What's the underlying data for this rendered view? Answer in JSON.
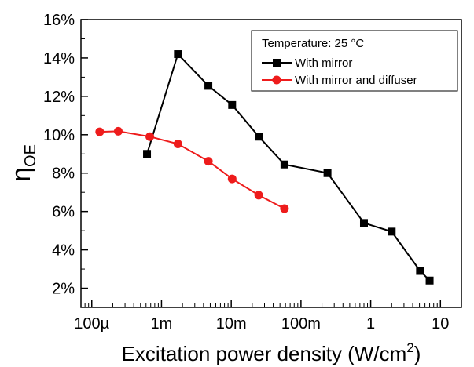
{
  "chart_data": {
    "type": "scatter",
    "x_scale": "log",
    "xlabel_main": "Excitation power density (W/cm",
    "xlabel_sup": "2",
    "xlabel_close": ")",
    "ylabel_main": "η",
    "ylabel_sub": "OE",
    "xlim": [
      7e-05,
      20
    ],
    "ylim": [
      0.01,
      0.16
    ],
    "x_ticks": [
      {
        "value": 0.0001,
        "label": "100µ"
      },
      {
        "value": 0.001,
        "label": "1m"
      },
      {
        "value": 0.01,
        "label": "10m"
      },
      {
        "value": 0.1,
        "label": "100m"
      },
      {
        "value": 1,
        "label": "1"
      },
      {
        "value": 10,
        "label": "10"
      }
    ],
    "y_ticks": [
      {
        "value": 0.02,
        "label": "2%"
      },
      {
        "value": 0.04,
        "label": "4%"
      },
      {
        "value": 0.06,
        "label": "6%"
      },
      {
        "value": 0.08,
        "label": "8%"
      },
      {
        "value": 0.1,
        "label": "10%"
      },
      {
        "value": 0.12,
        "label": "12%"
      },
      {
        "value": 0.14,
        "label": "14%"
      },
      {
        "value": 0.16,
        "label": "16%"
      }
    ],
    "legend_title": "Temperature: 25 °C",
    "legend_position": "top-right",
    "series": [
      {
        "name": "With mirror",
        "color": "#000000",
        "marker": "square",
        "x": [
          0.00062,
          0.00172,
          0.0047,
          0.0103,
          0.0248,
          0.058,
          0.24,
          0.8,
          2.0,
          5.1,
          7.0
        ],
        "y": [
          0.09,
          0.142,
          0.1255,
          0.1155,
          0.099,
          0.0845,
          0.08,
          0.054,
          0.0495,
          0.029,
          0.024
        ]
      },
      {
        "name": "With mirror and diffuser",
        "color": "#ee1c1c",
        "marker": "circle",
        "x": [
          0.00013,
          0.00024,
          0.00068,
          0.00172,
          0.0047,
          0.0103,
          0.0248,
          0.058
        ],
        "y": [
          0.1015,
          0.1018,
          0.099,
          0.0952,
          0.0862,
          0.077,
          0.0685,
          0.0615
        ]
      }
    ]
  }
}
